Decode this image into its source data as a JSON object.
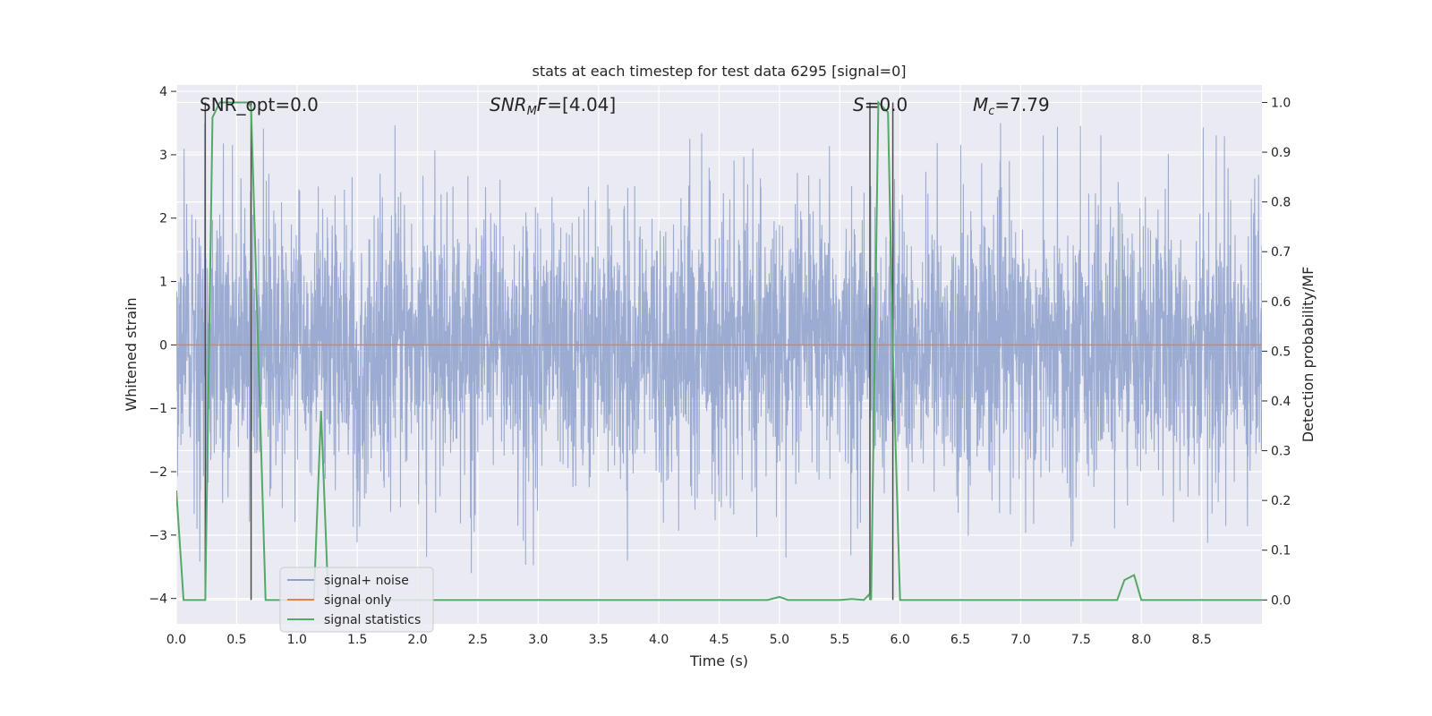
{
  "chart_data": {
    "type": "line",
    "title": "stats at each timestep for test data 6295 [signal=0]",
    "xlabel": "Time (s)",
    "ylabel": "Whitened strain",
    "y2label": "Detection probability/MF",
    "xlim": [
      0,
      9.0
    ],
    "ylim": [
      -4.4,
      4.1
    ],
    "y2lim": [
      -0.048,
      1.035
    ],
    "x_ticks": [
      0.0,
      0.5,
      1.0,
      1.5,
      2.0,
      2.5,
      3.0,
      3.5,
      4.0,
      4.5,
      5.0,
      5.5,
      6.0,
      6.5,
      7.0,
      7.5,
      8.0,
      8.5
    ],
    "x_tick_labels": [
      "0.0",
      "0.5",
      "1.0",
      "1.5",
      "2.0",
      "2.5",
      "3.0",
      "3.5",
      "4.0",
      "4.5",
      "5.0",
      "5.5",
      "6.0",
      "6.5",
      "7.0",
      "7.5",
      "8.0",
      "8.5"
    ],
    "y_ticks": [
      -4,
      -3,
      -2,
      -1,
      0,
      1,
      2,
      3,
      4
    ],
    "y_tick_labels": [
      "−4",
      "−3",
      "−2",
      "−1",
      "0",
      "1",
      "2",
      "3",
      "4"
    ],
    "y2_ticks": [
      0.0,
      0.1,
      0.2,
      0.3,
      0.4,
      0.5,
      0.6,
      0.7,
      0.8,
      0.9,
      1.0
    ],
    "y2_tick_labels": [
      "0.0",
      "0.1",
      "0.2",
      "0.3",
      "0.4",
      "0.5",
      "0.6",
      "0.7",
      "0.8",
      "0.9",
      "1.0"
    ],
    "grid": true,
    "legend_position": "lower-left",
    "series": [
      {
        "name": "signal+ noise",
        "color": "#8da0cb",
        "axis": "left",
        "description_note": "dense noise trace",
        "amplitude_core": 1.5,
        "peak_max": 3.5,
        "peak_min": -3.6
      },
      {
        "name": "signal only",
        "color": "#dd8452",
        "axis": "left",
        "x": [
          0.0,
          9.0
        ],
        "y": [
          0.0,
          0.0
        ]
      },
      {
        "name": "signal statistics",
        "color": "#55a868",
        "axis": "right",
        "x": [
          0.0,
          0.06,
          0.24,
          0.3,
          0.36,
          0.6,
          0.62,
          0.74,
          1.14,
          1.2,
          1.26,
          1.32,
          4.9,
          5.0,
          5.07,
          5.5,
          5.6,
          5.7,
          5.74,
          5.76,
          5.82,
          5.9,
          5.94,
          6.0,
          7.8,
          7.86,
          7.94,
          8.0,
          9.0
        ],
        "y": [
          0.22,
          0.0,
          0.0,
          0.97,
          1.0,
          1.0,
          0.99,
          0.0,
          0.0,
          0.38,
          0.0,
          0.0,
          0.0,
          0.006,
          0.0,
          0.0,
          0.002,
          0.0,
          0.01,
          0.0,
          1.0,
          0.98,
          0.5,
          0.0,
          0.0,
          0.04,
          0.05,
          0.0,
          0.0
        ]
      }
    ],
    "vlines": [
      0.24,
      0.62,
      5.75,
      5.94
    ],
    "vline_color": "#4c4c4c",
    "annotations": {
      "snr_opt": "SNR_opt=0.0",
      "snr_mf_prefix": "SNR",
      "snr_mf_sub": "M",
      "snr_mf_italic_f": "F",
      "snr_mf_value": "=[4.04]",
      "s_symbol": "S",
      "s_value": "=0.0",
      "mc_symbol": "M",
      "mc_sub": "c",
      "mc_value": "=7.79"
    },
    "colors": {
      "plot_bg": "#eaeaf2",
      "grid": "#ffffff"
    }
  }
}
